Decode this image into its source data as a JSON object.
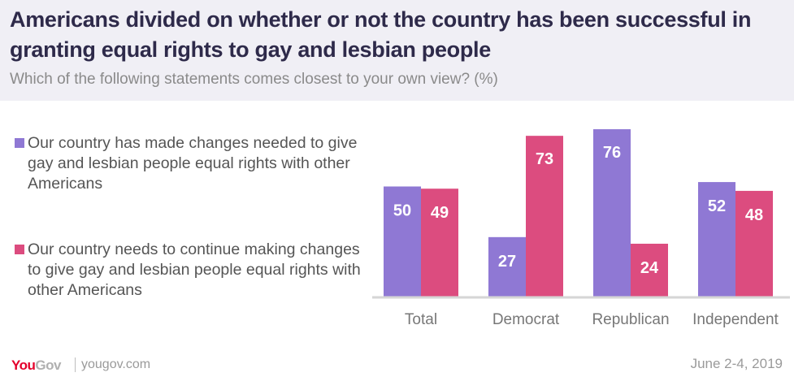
{
  "header": {
    "title": "Americans divided on whether or not the country has been successful in granting equal rights to gay and lesbian people",
    "subtitle": "Which of the following statements comes closest to your own view? (%)"
  },
  "legend": [
    {
      "label": "Our country has made changes needed to give gay and lesbian people equal rights with other Americans",
      "color": "#8f78d4"
    },
    {
      "label": "Our country needs to continue making changes to give gay and lesbian people equal rights with other Americans",
      "color": "#dc4c7f"
    }
  ],
  "footer": {
    "logo_you": "You",
    "logo_gov": "Gov",
    "url": "yougov.com",
    "date": "June 2-4, 2019"
  },
  "chart_data": {
    "type": "bar",
    "title": "Americans divided on whether or not the country has been successful in granting equal rights to gay and lesbian people",
    "subtitle": "Which of the following statements comes closest to your own view? (%)",
    "categories": [
      "Total",
      "Democrat",
      "Republican",
      "Independent"
    ],
    "series": [
      {
        "name": "Our country has made changes needed to give gay and lesbian people equal rights with other Americans",
        "color": "#8f78d4",
        "values": [
          50,
          27,
          76,
          52
        ]
      },
      {
        "name": "Our country needs to continue making changes to give gay and lesbian people equal rights with other Americans",
        "color": "#dc4c7f",
        "values": [
          49,
          73,
          24,
          48
        ]
      }
    ],
    "xlabel": "",
    "ylabel": "",
    "ylim": [
      0,
      80
    ],
    "grid": false,
    "legend_position": "left",
    "data_labels": true
  }
}
